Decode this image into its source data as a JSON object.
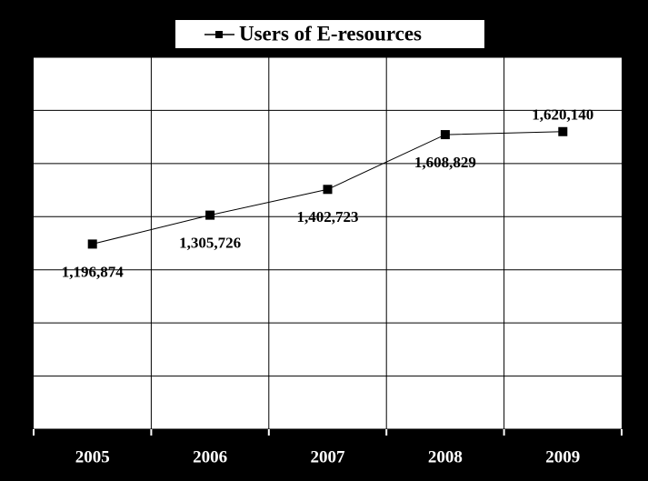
{
  "chart_data": {
    "type": "line",
    "categories": [
      "2005",
      "2006",
      "2007",
      "2008",
      "2009"
    ],
    "series": [
      {
        "name": "Users of E-resources",
        "color": "#000000",
        "values": [
          1196874,
          1305726,
          1402723,
          1608829,
          1620140
        ],
        "value_labels": [
          "1,196,874",
          "1,305,726",
          "1,402,723",
          "1,608,829",
          "1,620,140"
        ]
      }
    ],
    "ylim": [
      500000,
      1900000
    ],
    "yticks": [
      500000,
      700000,
      900000,
      1100000,
      1300000,
      1500000,
      1700000,
      1900000
    ],
    "grid": true
  }
}
